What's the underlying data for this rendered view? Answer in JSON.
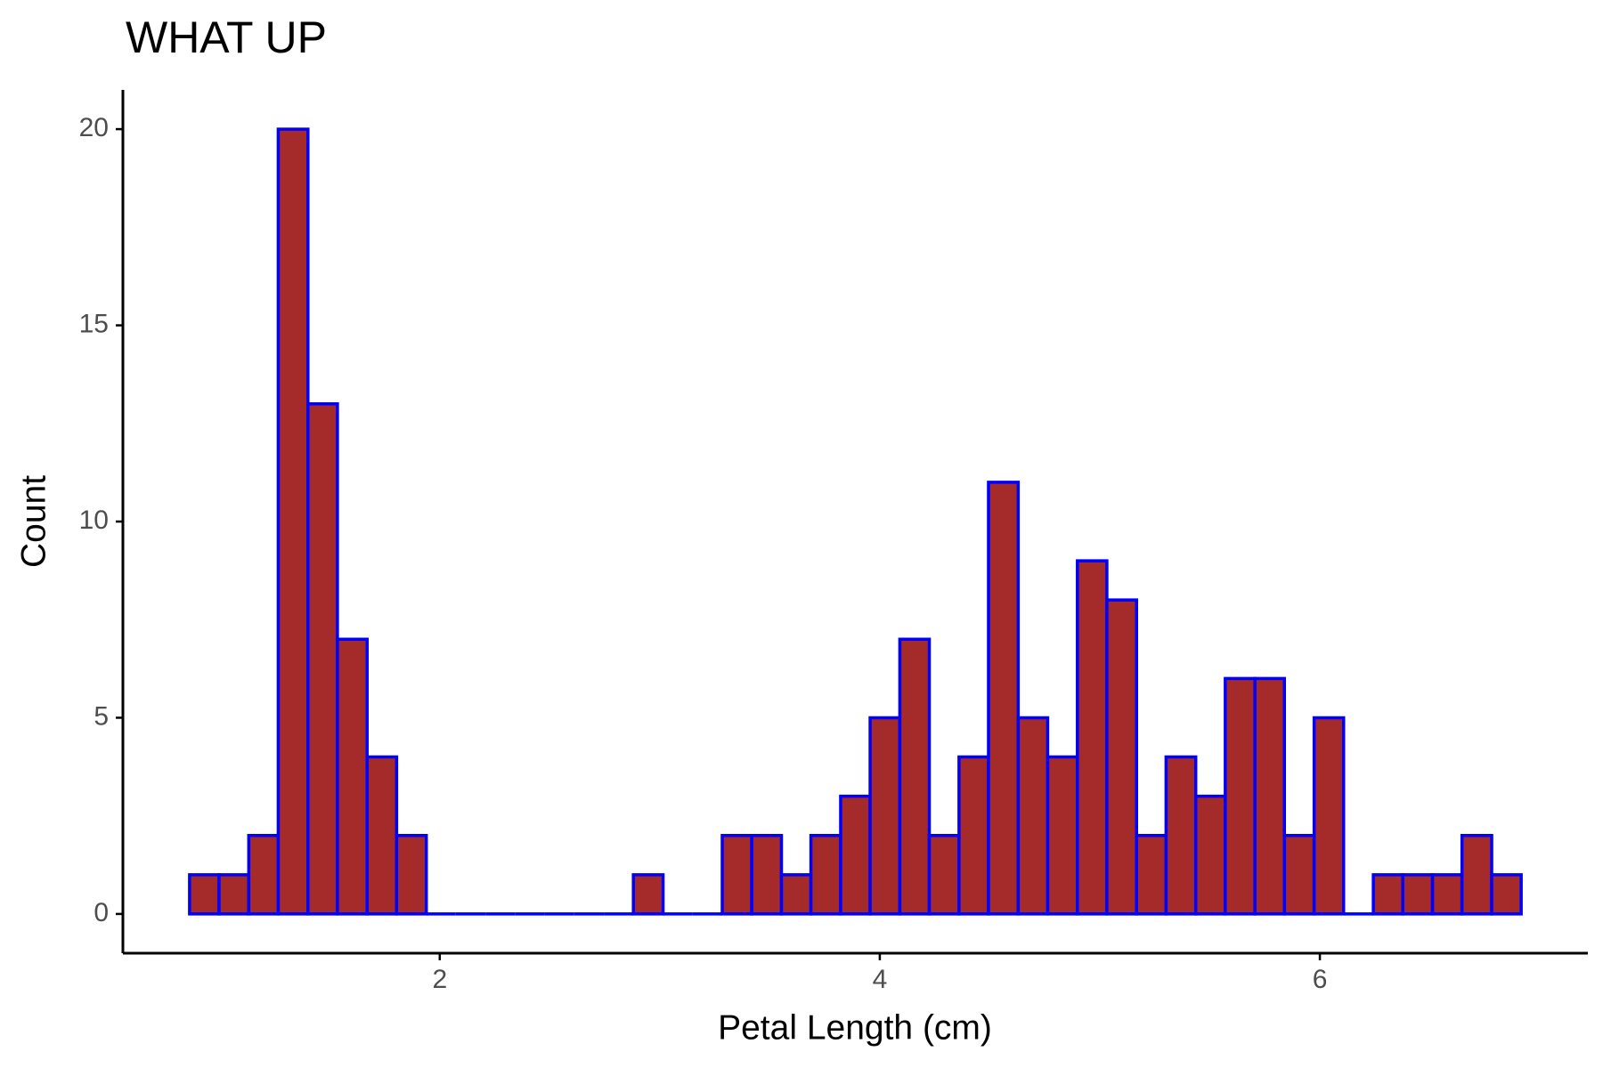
{
  "chart_data": {
    "type": "histogram",
    "title": "WHAT UP",
    "x_label": "Petal Length (cm)",
    "y_label": "Count",
    "bins": [
      0.863,
      0.997,
      1.132,
      1.266,
      1.401,
      1.535,
      1.67,
      1.804,
      1.939,
      2.073,
      2.208,
      2.342,
      2.477,
      2.611,
      2.746,
      2.88,
      3.015,
      3.149,
      3.284,
      3.418,
      3.553,
      3.687,
      3.822,
      3.956,
      4.091,
      4.225,
      4.36,
      4.494,
      4.629,
      4.763,
      4.898,
      5.032,
      5.167,
      5.301,
      5.436,
      5.57,
      5.705,
      5.839,
      5.974,
      6.108,
      6.243,
      6.377,
      6.512,
      6.646,
      6.781,
      6.915
    ],
    "values": [
      1,
      1,
      2,
      20,
      13,
      7,
      4,
      2,
      0,
      0,
      0,
      0,
      0,
      0,
      0,
      1,
      0,
      0,
      2,
      2,
      1,
      2,
      3,
      5,
      7,
      2,
      4,
      11,
      5,
      4,
      9,
      8,
      2,
      4,
      3,
      6,
      6,
      2,
      5,
      0,
      1,
      1,
      1,
      2,
      1
    ],
    "color": "#a52a2a",
    "edge_color": "#0000ff",
    "xlim": [
      0.56,
      7.218
    ],
    "xticks": [
      2,
      4,
      6
    ],
    "ylim": [
      -1,
      21
    ],
    "yticks": [
      0,
      5,
      10,
      15,
      20
    ],
    "grid": false
  }
}
